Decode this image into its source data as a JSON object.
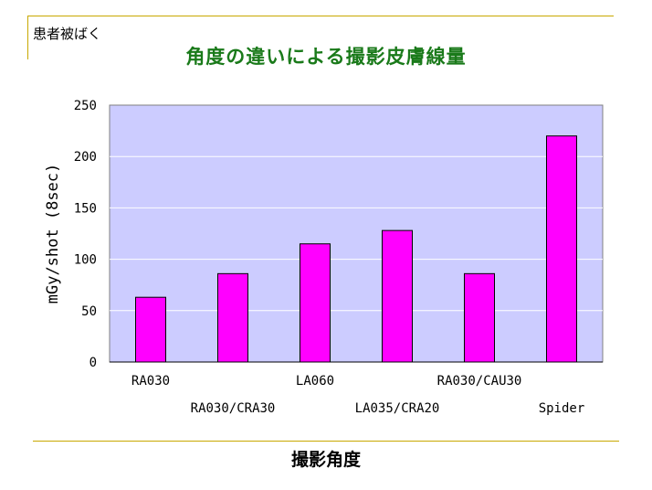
{
  "header": {
    "section_label": "患者被ばく",
    "title": "角度の違いによる撮影皮膚線量"
  },
  "colors": {
    "plot_background": "#ccccff",
    "bar": "#ff00ff",
    "title": "#1a7a1a",
    "rule": "#c8a800"
  },
  "chart_data": {
    "type": "bar",
    "title": "角度の違いによる撮影皮膚線量",
    "xlabel": "撮影角度",
    "ylabel": "mGy/shot (8sec)",
    "categories": [
      "RA030",
      "RA030/CRA30",
      "LA060",
      "LA035/CRA20",
      "RA030/CAU30",
      "Spider"
    ],
    "values": [
      63,
      86,
      115,
      128,
      86,
      220
    ],
    "ylim": [
      0,
      250
    ],
    "yticks": [
      "0",
      "50",
      "100",
      "150",
      "200",
      "250"
    ],
    "grid": true,
    "legend": "none"
  }
}
